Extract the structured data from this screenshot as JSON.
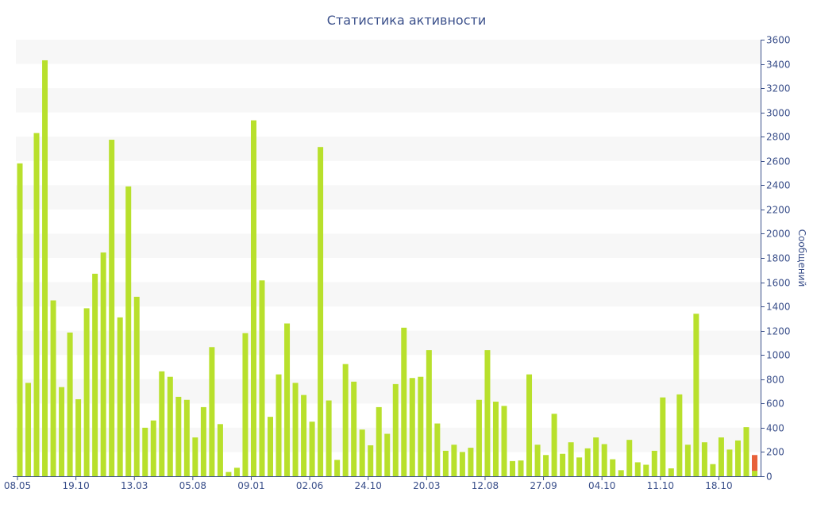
{
  "colors": {
    "bar": "#b8e02c",
    "highlight": "#e8613a",
    "band": "#f7f7f7",
    "axis": "#3a4f8a",
    "text": "#3a4f8a"
  },
  "chart_data": {
    "type": "bar",
    "title": "Статистика активности",
    "xlabel": "",
    "ylabel": "Сообщений",
    "y_axis_position": "right",
    "ylim": [
      0,
      3600
    ],
    "yticks": [
      0,
      200,
      400,
      600,
      800,
      1000,
      1200,
      1400,
      1600,
      1800,
      2000,
      2200,
      2400,
      2600,
      2800,
      3000,
      3200,
      3400,
      3600
    ],
    "grid": "alternating horizontal bands",
    "legend": "none",
    "x_tick_labels": [
      {
        "index": 0,
        "label": "08.05"
      },
      {
        "index": 7,
        "label": "19.10"
      },
      {
        "index": 14,
        "label": "13.03"
      },
      {
        "index": 21,
        "label": "05.08"
      },
      {
        "index": 28,
        "label": "09.01"
      },
      {
        "index": 35,
        "label": "02.06"
      },
      {
        "index": 42,
        "label": "24.10"
      },
      {
        "index": 49,
        "label": "20.03"
      },
      {
        "index": 56,
        "label": "12.08"
      },
      {
        "index": 63,
        "label": "27.09"
      },
      {
        "index": 70,
        "label": "04.10"
      },
      {
        "index": 77,
        "label": "11.10"
      },
      {
        "index": 84,
        "label": "18.10"
      }
    ],
    "values": [
      2580,
      770,
      2830,
      3430,
      1450,
      735,
      1185,
      635,
      1385,
      1670,
      1845,
      2775,
      1310,
      2390,
      1480,
      400,
      460,
      865,
      820,
      655,
      630,
      320,
      570,
      1065,
      430,
      35,
      70,
      1180,
      2935,
      1615,
      490,
      840,
      1260,
      770,
      670,
      450,
      2715,
      625,
      135,
      925,
      780,
      385,
      255,
      570,
      350,
      760,
      1225,
      810,
      820,
      1040,
      435,
      210,
      260,
      200,
      235,
      630,
      1040,
      615,
      580,
      125,
      130,
      840,
      260,
      175,
      515,
      185,
      280,
      155,
      230,
      320,
      265,
      140,
      50,
      300,
      115,
      95,
      210,
      650,
      65,
      675,
      260,
      1340,
      280,
      100,
      320,
      220,
      295,
      405,
      175
    ],
    "highlight_index": 88,
    "highlight_overlap": 45
  }
}
